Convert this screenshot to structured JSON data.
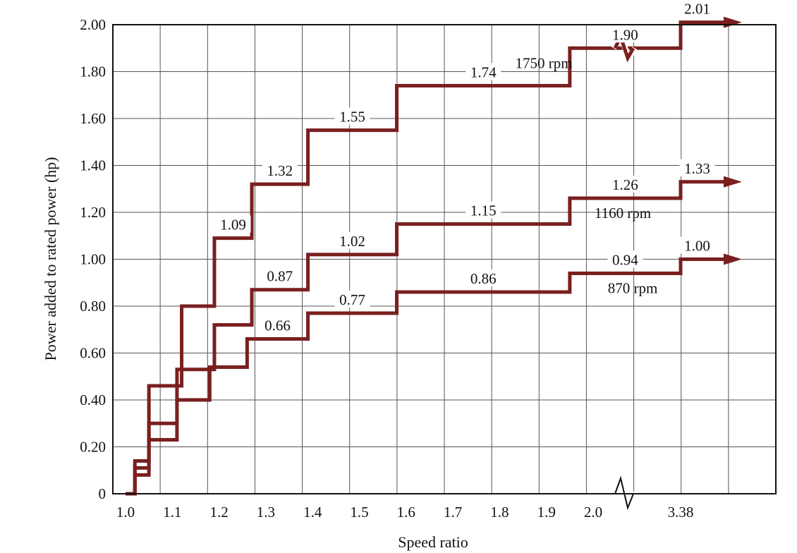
{
  "chart_data": {
    "type": "line",
    "xlabel": "Speed ratio",
    "ylabel": "Power added to rated power (hp)",
    "ylim": [
      0,
      2.0
    ],
    "grid": true,
    "x_ticks": [
      "1.0",
      "1.1",
      "1.2",
      "1.3",
      "1.4",
      "1.5",
      "1.6",
      "1.7",
      "1.8",
      "1.9",
      "2.0",
      "3.38"
    ],
    "y_ticks": [
      "0",
      "0.20",
      "0.40",
      "0.60",
      "0.80",
      "1.00",
      "1.20",
      "1.40",
      "1.60",
      "1.80",
      "2.00"
    ],
    "axis_break": "between 2.0 and 3.38",
    "colors": {
      "series": "#7a1f1f",
      "grid": "#555555",
      "frame": "#111111"
    },
    "series": [
      {
        "name": "1750 rpm",
        "steps": [
          {
            "x": 1.0,
            "y": 0.0
          },
          {
            "x": 1.02,
            "y": 0.14
          },
          {
            "x": 1.05,
            "y": 0.46
          },
          {
            "x": 1.12,
            "y": 0.8
          },
          {
            "x": 1.19,
            "y": 1.09
          },
          {
            "x": 1.27,
            "y": 1.32
          },
          {
            "x": 1.39,
            "y": 1.55
          },
          {
            "x": 1.58,
            "y": 1.74
          },
          {
            "x": 1.95,
            "y": 1.9
          },
          {
            "x": 3.38,
            "y": 2.01
          }
        ],
        "labels": [
          "1.09",
          "1.32",
          "1.55",
          "1.74",
          "1.90",
          "2.01"
        ]
      },
      {
        "name": "1160 rpm",
        "steps": [
          {
            "x": 1.0,
            "y": 0.0
          },
          {
            "x": 1.02,
            "y": 0.11
          },
          {
            "x": 1.05,
            "y": 0.3
          },
          {
            "x": 1.11,
            "y": 0.53
          },
          {
            "x": 1.19,
            "y": 0.72
          },
          {
            "x": 1.27,
            "y": 0.87
          },
          {
            "x": 1.39,
            "y": 1.02
          },
          {
            "x": 1.58,
            "y": 1.15
          },
          {
            "x": 1.95,
            "y": 1.26
          },
          {
            "x": 3.38,
            "y": 1.33
          }
        ],
        "labels": [
          "0.87",
          "1.02",
          "1.15",
          "1.26",
          "1.33"
        ]
      },
      {
        "name": "870 rpm",
        "steps": [
          {
            "x": 1.0,
            "y": 0.0
          },
          {
            "x": 1.02,
            "y": 0.08
          },
          {
            "x": 1.05,
            "y": 0.23
          },
          {
            "x": 1.11,
            "y": 0.4
          },
          {
            "x": 1.18,
            "y": 0.54
          },
          {
            "x": 1.26,
            "y": 0.66
          },
          {
            "x": 1.39,
            "y": 0.77
          },
          {
            "x": 1.58,
            "y": 0.86
          },
          {
            "x": 1.95,
            "y": 0.94
          },
          {
            "x": 3.38,
            "y": 1.0
          }
        ],
        "labels": [
          "0.66",
          "0.77",
          "0.86",
          "0.94",
          "1.00"
        ]
      }
    ]
  }
}
